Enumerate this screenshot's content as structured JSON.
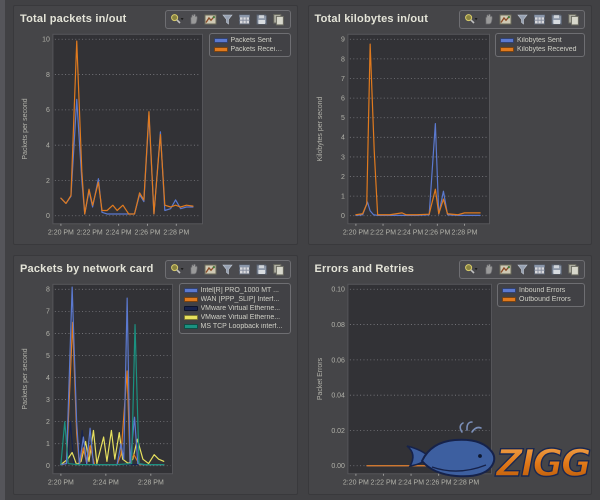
{
  "colors": {
    "app_bg": "#414144",
    "panel_bg": "#454548",
    "plot_bg": "#323236",
    "plot_border": "#56565a",
    "grid": "#7d7d82",
    "tick_text": "#b2b2aa",
    "title_text": "#e4e4d8",
    "legend_bg": "#414145",
    "legend_border": "#6e6e72",
    "accent_blue": "#5b79cf",
    "accent_orange": "#e07a1e",
    "logo_orange": "#e07818",
    "logo_blue": "#3d5fa0"
  },
  "toolbar": {
    "icons": [
      {
        "name": "zoom"
      },
      {
        "name": "pan"
      },
      {
        "name": "chart-style"
      },
      {
        "name": "filter"
      },
      {
        "name": "table"
      },
      {
        "name": "save"
      },
      {
        "name": "copy"
      }
    ]
  },
  "watermark": {
    "text": "ZIGG"
  },
  "chart_data": [
    {
      "type": "line",
      "title": "Total packets in/out",
      "ylabel": "Packets per second",
      "ylim": [
        0,
        10
      ],
      "yticks": [
        "0",
        "2",
        "4",
        "6",
        "8",
        "10"
      ],
      "xlim": [
        0,
        9.4
      ],
      "x_unit": "minutes after 2:20 PM",
      "xticks": [
        "2:20 PM",
        "2:22 PM",
        "2:24 PM",
        "2:26 PM",
        "2:28 PM"
      ],
      "xtick_pos": [
        0,
        2,
        4,
        6,
        8
      ],
      "grid": "dotted-horizontal",
      "legend_position": "right-top",
      "draw_order": [
        0,
        1
      ],
      "series": [
        {
          "name": "Packets Sent",
          "color": "#5b79cf",
          "x": [
            0,
            0.35,
            0.7,
            1.1,
            1.45,
            1.65,
            1.95,
            2.2,
            2.6,
            2.85,
            3.2,
            3.6,
            3.9,
            4.3,
            4.7,
            5.1,
            5.45,
            5.75,
            6.1,
            6.45,
            6.9,
            7.2,
            7.6,
            7.95,
            8.3,
            8.7,
            9.15
          ],
          "y": [
            1.0,
            0.7,
            1.1,
            6.6,
            2.0,
            0.1,
            1.4,
            0.5,
            2.1,
            0.2,
            0.1,
            0.1,
            0.1,
            0.1,
            0.1,
            0.1,
            1.2,
            0.8,
            5.7,
            0.1,
            4.75,
            0.3,
            0.4,
            0.9,
            0.4,
            0.5,
            0.5
          ]
        },
        {
          "name": "Packets Received",
          "color": "#e07a1e",
          "x": [
            0,
            0.35,
            0.7,
            1.1,
            1.45,
            1.65,
            1.95,
            2.2,
            2.6,
            2.85,
            3.2,
            3.6,
            3.9,
            4.3,
            4.7,
            5.1,
            5.45,
            5.75,
            6.1,
            6.45,
            6.9,
            7.2,
            7.6,
            7.95,
            8.3,
            8.7,
            9.15
          ],
          "y": [
            1.0,
            0.7,
            1.15,
            9.9,
            2.5,
            0.1,
            1.5,
            0.6,
            1.9,
            0.3,
            0.3,
            0.6,
            0.3,
            0.6,
            0.1,
            0.1,
            1.3,
            0.9,
            5.9,
            0.1,
            4.6,
            0.6,
            0.5,
            0.6,
            0.5,
            0.6,
            0.55
          ]
        }
      ]
    },
    {
      "type": "line",
      "title": "Total kilobytes in/out",
      "ylabel": "Kilobytes per second",
      "ylim": [
        0,
        9
      ],
      "yticks": [
        "0",
        "1",
        "2",
        "3",
        "4",
        "5",
        "6",
        "7",
        "8",
        "9"
      ],
      "xlim": [
        0,
        9.4
      ],
      "x_unit": "minutes after 2:20 PM",
      "xticks": [
        "2:20 PM",
        "2:22 PM",
        "2:24 PM",
        "2:26 PM",
        "2:28 PM"
      ],
      "xtick_pos": [
        0,
        2,
        4,
        6,
        8
      ],
      "grid": "dotted-horizontal",
      "legend_position": "right-top",
      "draw_order": [
        0,
        1
      ],
      "series": [
        {
          "name": "Kilobytes Sent",
          "color": "#5b79cf",
          "x": [
            0,
            0.5,
            0.85,
            1.05,
            1.3,
            1.6,
            2.5,
            3.5,
            4.5,
            5.4,
            5.85,
            6.1,
            6.45,
            6.75,
            7.5,
            8.2,
            9.15
          ],
          "y": [
            0.02,
            0.05,
            0.7,
            0.25,
            0.05,
            0.02,
            0.02,
            0.02,
            0.02,
            0.05,
            4.7,
            0.08,
            1.25,
            0.05,
            0.02,
            0.02,
            0.02
          ]
        },
        {
          "name": "Kilobytes Received",
          "color": "#e07a1e",
          "x": [
            0,
            0.5,
            0.8,
            1.05,
            1.35,
            1.6,
            2.5,
            3.4,
            3.7,
            4.5,
            5.4,
            5.85,
            6.1,
            6.45,
            6.75,
            7.5,
            8.0,
            8.5,
            9.15
          ],
          "y": [
            0.05,
            0.1,
            0.6,
            8.75,
            3.3,
            0.05,
            0.05,
            0.15,
            0.05,
            0.05,
            0.08,
            1.35,
            0.1,
            0.85,
            0.1,
            0.05,
            0.15,
            0.15,
            0.15
          ]
        }
      ]
    },
    {
      "type": "line",
      "title": "Packets by network card",
      "ylabel": "Packets per second",
      "ylim": [
        0,
        8
      ],
      "yticks": [
        "0",
        "1",
        "2",
        "3",
        "4",
        "5",
        "6",
        "7",
        "8"
      ],
      "xlim": [
        0,
        9.4
      ],
      "x_unit": "minutes after 2:20 PM",
      "xticks": [
        "2:20 PM",
        "2:24 PM",
        "2:28 PM"
      ],
      "xtick_pos": [
        0,
        4,
        8
      ],
      "grid": "dotted-horizontal",
      "legend_position": "right-top",
      "draw_order": [
        2,
        3,
        1,
        0,
        4
      ],
      "series": [
        {
          "name": "Intel[R] PRO_1000 MT ...",
          "color": "#5b79cf",
          "x": [
            0,
            0.5,
            1.0,
            1.4,
            1.65,
            2.0,
            2.3,
            2.6,
            2.9,
            3.5,
            4.2,
            5.0,
            5.35,
            5.6,
            5.9,
            6.15,
            6.55,
            6.85,
            7.3,
            8.0,
            9.15
          ],
          "y": [
            0.05,
            0.1,
            8.1,
            2.0,
            0.05,
            1.3,
            0.1,
            1.7,
            0.05,
            0.05,
            0.05,
            0.05,
            1.0,
            0.3,
            7.6,
            0.1,
            2.2,
            0.1,
            0.05,
            0.05,
            0.05
          ]
        },
        {
          "name": "WAN [PPP_SLIP] Interf...",
          "color": "#e07a1e",
          "x": [
            0,
            0.5,
            1.05,
            1.4,
            1.65,
            2.0,
            2.3,
            2.6,
            3.0,
            4.0,
            5.0,
            5.35,
            5.9,
            6.15,
            6.5,
            7.0,
            8.0,
            9.15
          ],
          "y": [
            0.05,
            0.1,
            6.5,
            1.5,
            0.05,
            0.8,
            0.1,
            0.9,
            0.05,
            0.05,
            0.05,
            0.5,
            4.3,
            0.1,
            0.5,
            0.05,
            0.05,
            0.05
          ]
        },
        {
          "name": "VMware Virtual Etherne...",
          "color": "#18234d",
          "x": [
            0,
            0.6,
            0.85,
            1.15,
            1.6,
            1.9,
            2.2,
            3.0,
            9.15
          ],
          "y": [
            0.05,
            0.1,
            2.0,
            0.1,
            0.1,
            1.6,
            0.05,
            0.05,
            0.05
          ]
        },
        {
          "name": "VMware Virtual Etherne...",
          "color": "#e6e05e",
          "x": [
            0,
            0.6,
            1.0,
            1.4,
            1.8,
            2.2,
            2.5,
            2.9,
            3.2,
            3.8,
            4.1,
            4.5,
            4.8,
            5.2,
            5.5,
            6.0,
            6.4,
            6.8,
            7.3,
            7.8,
            8.3,
            8.7,
            9.15
          ],
          "y": [
            0.05,
            0.3,
            0.6,
            0.05,
            0.2,
            1.1,
            0.2,
            1.6,
            0.1,
            1.3,
            0.2,
            1.6,
            0.3,
            1.5,
            0.3,
            0.1,
            0.3,
            1.2,
            0.3,
            0.1,
            0.5,
            0.3,
            0.2
          ]
        },
        {
          "name": "MS TCP Loopback interf...",
          "color": "#1b9180",
          "x": [
            0,
            0.35,
            0.65,
            1.5,
            3.0,
            5.0,
            6.3,
            6.6,
            6.95,
            7.5,
            9.15
          ],
          "y": [
            0.05,
            2.0,
            0.1,
            0.05,
            0.05,
            0.05,
            0.1,
            6.4,
            0.1,
            0.05,
            0.05
          ]
        }
      ]
    },
    {
      "type": "line",
      "title": "Errors and Retries",
      "ylabel": "Packet Errors",
      "ylim": [
        0,
        0.1
      ],
      "yticks": [
        "0.00",
        "0.02",
        "0.04",
        "0.06",
        "0.08",
        "0.10"
      ],
      "xlim": [
        0,
        9.4
      ],
      "x_unit": "minutes after 2:20 PM",
      "xticks": [
        "2:20 PM",
        "2:22 PM",
        "2:24 PM",
        "2:26 PM",
        "2:28 PM"
      ],
      "xtick_pos": [
        0,
        2,
        4,
        6,
        8
      ],
      "grid": "dotted-horizontal",
      "legend_position": "right-top",
      "draw_order": [
        0,
        1
      ],
      "series": [
        {
          "name": "Inbound Errors",
          "color": "#5b79cf",
          "x": [
            0.8,
            9.2
          ],
          "y": [
            0,
            0
          ]
        },
        {
          "name": "Outbound Errors",
          "color": "#e07a1e",
          "x": [
            0.8,
            9.2
          ],
          "y": [
            0,
            0
          ]
        }
      ]
    }
  ]
}
